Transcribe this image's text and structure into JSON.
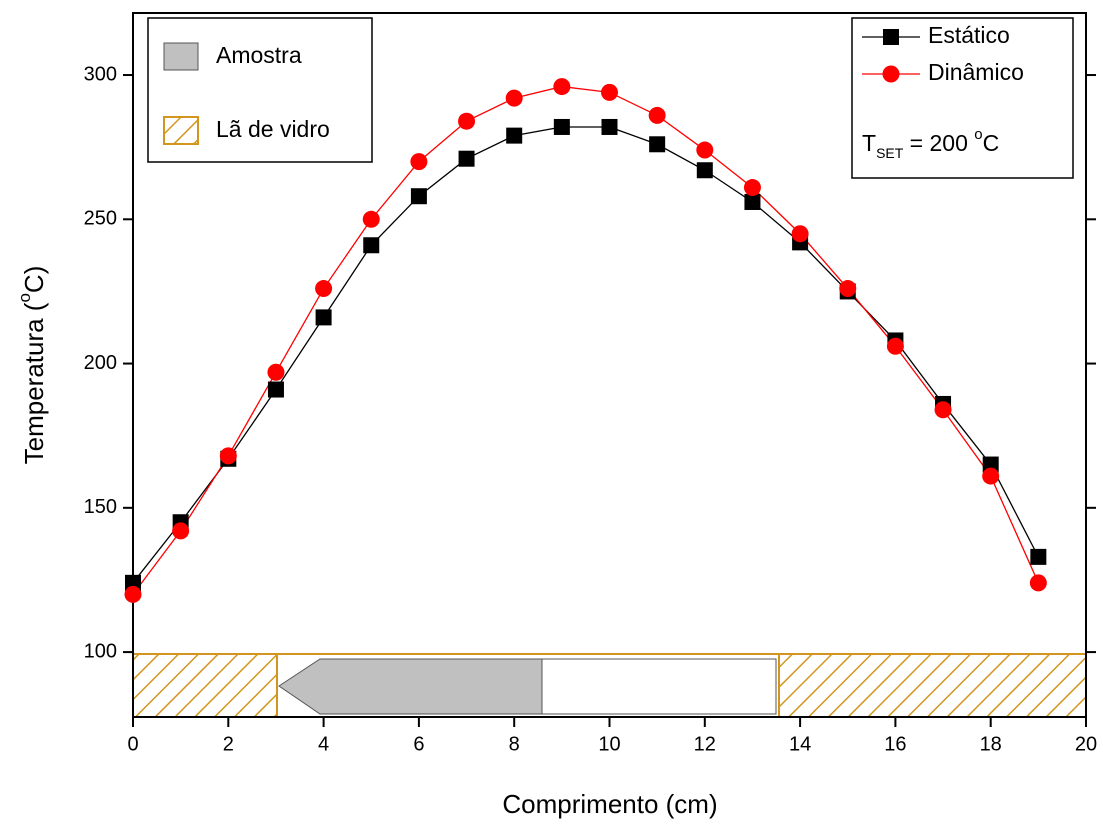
{
  "chart_data": {
    "type": "line",
    "x_label": "Comprimento (cm)",
    "y_label": {
      "before": "Temperatura (",
      "sup": "o",
      "after": "C)"
    },
    "x": [
      0,
      1,
      2,
      3,
      4,
      5,
      6,
      7,
      8,
      9,
      10,
      11,
      12,
      13,
      14,
      15,
      16,
      17,
      18,
      19
    ],
    "series": [
      {
        "name": "Estático",
        "color": "#000000",
        "marker": "square",
        "values": [
          124,
          145,
          167,
          191,
          216,
          241,
          258,
          271,
          279,
          282,
          282,
          276,
          267,
          256,
          242,
          225,
          208,
          186,
          165,
          133
        ]
      },
      {
        "name": "Dinâmico",
        "color": "#ff0000",
        "marker": "circle",
        "values": [
          120,
          142,
          168,
          197,
          226,
          250,
          270,
          284,
          292,
          296,
          294,
          286,
          274,
          261,
          245,
          226,
          206,
          184,
          161,
          124
        ]
      }
    ],
    "annotation": {
      "main": "T",
      "sub": "SET",
      "value": " = 200 ",
      "sup": "o",
      "unit": "C"
    },
    "sample_legend": [
      "Amostra",
      "Lã de vidro"
    ],
    "xlim": [
      0,
      20
    ],
    "xticks": [
      0,
      2,
      4,
      6,
      8,
      10,
      12,
      14,
      16,
      18,
      20
    ],
    "ylim": [
      77.5,
      321.5
    ],
    "yticks": [
      100,
      150,
      200,
      250,
      300
    ]
  }
}
